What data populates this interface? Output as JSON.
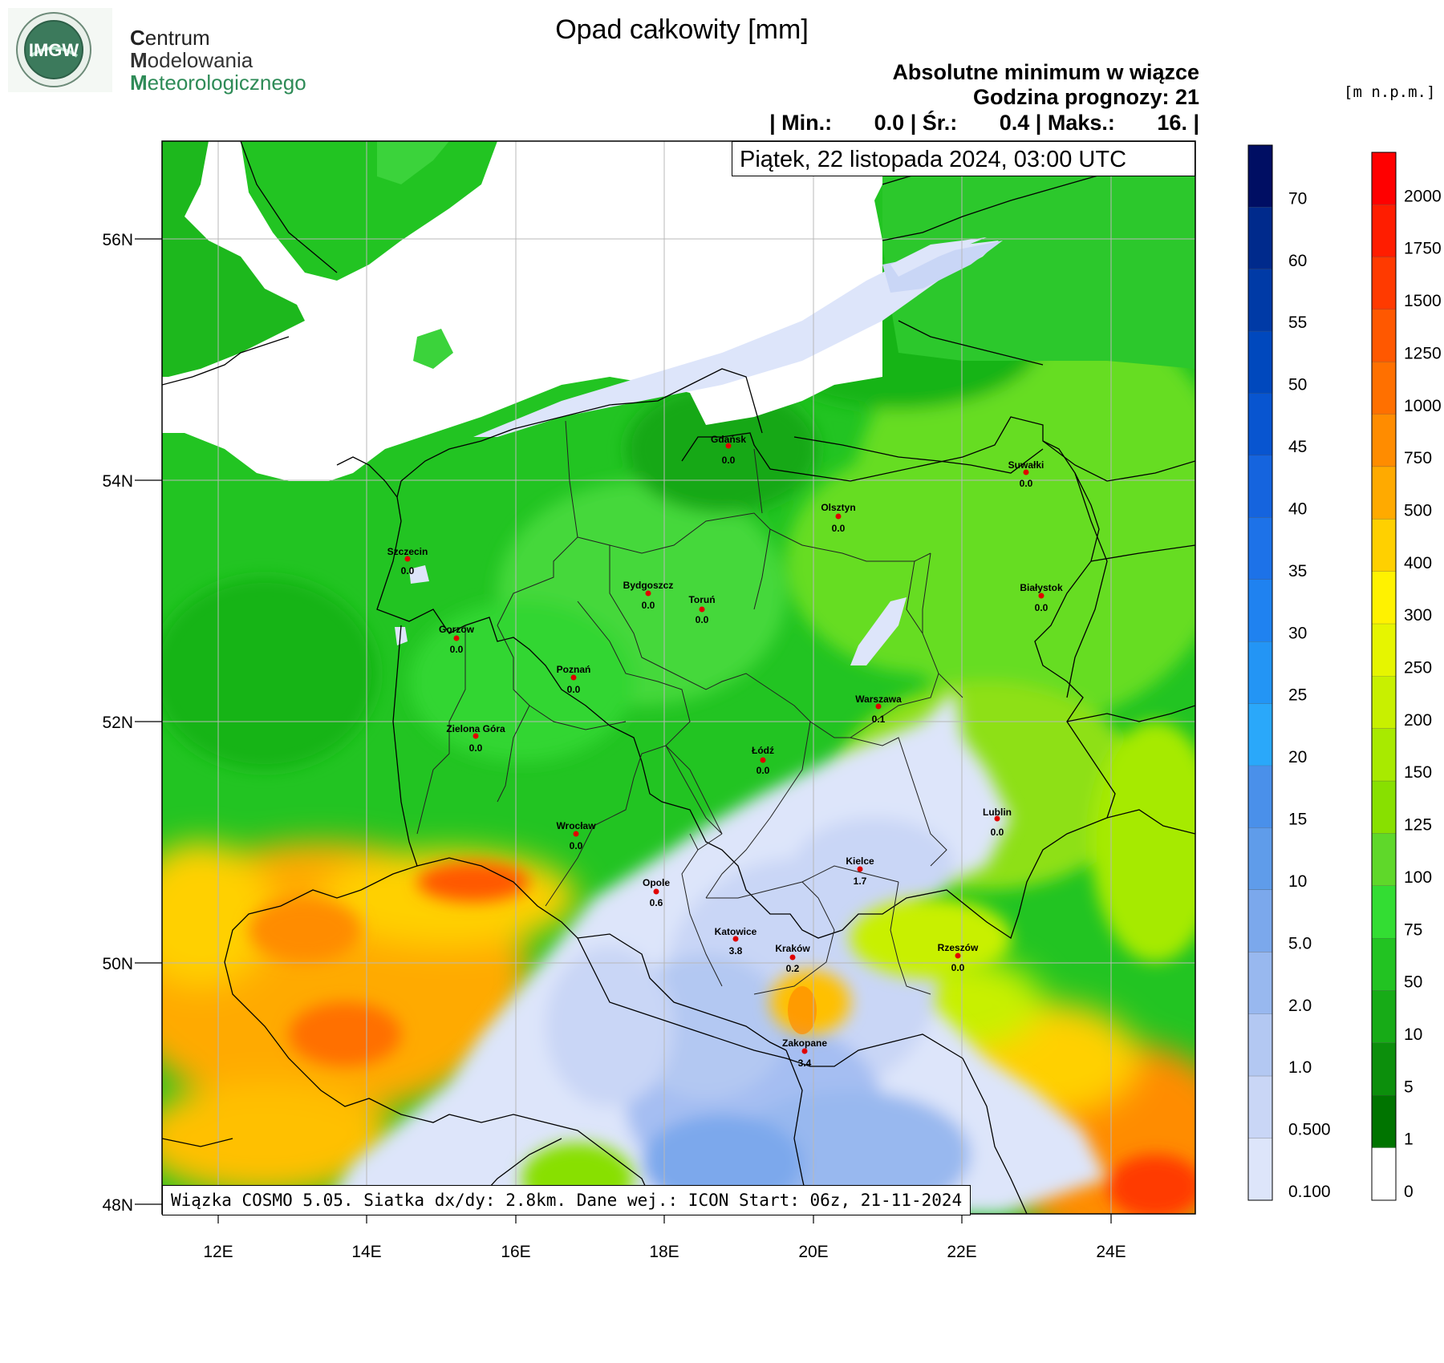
{
  "header": {
    "title": "Opad całkowity [mm]",
    "subtitle1": "Absolutne minimum w wiązce",
    "subtitle2": "Godzina prognozy: 21",
    "stats": "| Min.:       0.0 | Śr.:       0.4 | Maks.:       16. |",
    "date": "Piątek, 22 listopada 2024, 03:00 UTC",
    "units": "[m n.p.m.]"
  },
  "logo": {
    "badge": "IMGW",
    "line1_initial": "C",
    "line1_rest": "entrum",
    "line2_initial": "M",
    "line2_rest": "odelowania",
    "line3_initial": "M",
    "line3_rest": "eteorologicznego"
  },
  "map": {
    "lat_labels": [
      "56N",
      "54N",
      "52N",
      "50N",
      "48N"
    ],
    "lon_labels": [
      "12E",
      "14E",
      "16E",
      "18E",
      "20E",
      "22E",
      "24E"
    ],
    "cities": [
      {
        "name": "Gdańsk",
        "value": "0.0"
      },
      {
        "name": "Suwałki",
        "value": "0.0"
      },
      {
        "name": "Olsztyn",
        "value": "0.0"
      },
      {
        "name": "Szczecin",
        "value": "0.0"
      },
      {
        "name": "Bydgoszcz",
        "value": "0.0"
      },
      {
        "name": "Toruń",
        "value": "0.0"
      },
      {
        "name": "Białystok",
        "value": "0.0"
      },
      {
        "name": "Gorzów",
        "value": "0.0"
      },
      {
        "name": "Poznań",
        "value": "0.0"
      },
      {
        "name": "Warszawa",
        "value": "0.1"
      },
      {
        "name": "Zielona Góra",
        "value": "0.0"
      },
      {
        "name": "Łódź",
        "value": "0.0"
      },
      {
        "name": "Lublin",
        "value": "0.0"
      },
      {
        "name": "Wrocław",
        "value": "0.0"
      },
      {
        "name": "Kielce",
        "value": "1.7"
      },
      {
        "name": "Opole",
        "value": "0.6"
      },
      {
        "name": "Katowice",
        "value": "3.8"
      },
      {
        "name": "Kraków",
        "value": "0.2"
      },
      {
        "name": "Rzeszów",
        "value": "0.0"
      },
      {
        "name": "Zakopane",
        "value": "3.4"
      }
    ],
    "footer": "Wiązka COSMO 5.05. Siatka dx/dy: 2.8km. Dane wej.: ICON Start: 06z, 21-11-2024"
  },
  "precip_scale": {
    "labels": [
      "70",
      "60",
      "55",
      "50",
      "45",
      "40",
      "35",
      "30",
      "25",
      "20",
      "15",
      "10",
      "5.0",
      "2.0",
      "1.0",
      "0.500",
      "0.100"
    ],
    "colors": [
      "#000e63",
      "#002a8c",
      "#003aa6",
      "#0048bd",
      "#0855d0",
      "#1564de",
      "#1d72e8",
      "#1f82f0",
      "#2395f5",
      "#2aa8fa",
      "#4a90ea",
      "#5f9cea",
      "#7ba8ec",
      "#98b8ef",
      "#b3c8f2",
      "#c9d6f6",
      "#dde5fa"
    ]
  },
  "elev_scale": {
    "labels": [
      "2000",
      "1750",
      "1500",
      "1250",
      "1000",
      "750",
      "500",
      "400",
      "300",
      "250",
      "200",
      "150",
      "125",
      "100",
      "75",
      "50",
      "10",
      "5",
      "1",
      "0"
    ],
    "colors": [
      "#ff0000",
      "#ff1d00",
      "#ff3a00",
      "#ff5800",
      "#ff7000",
      "#ff8c00",
      "#ffaa00",
      "#ffd000",
      "#fff200",
      "#e6f500",
      "#c8f000",
      "#a8ea00",
      "#88e000",
      "#5fd82a",
      "#33dd33",
      "#22c322",
      "#17ab17",
      "#0c8f0c",
      "#007400",
      "#ffffff"
    ]
  }
}
